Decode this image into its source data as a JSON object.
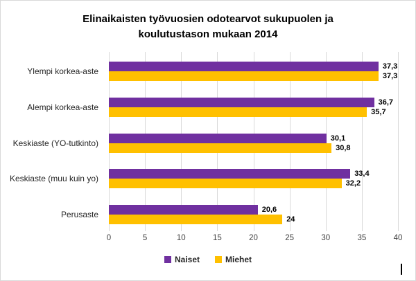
{
  "frame": {
    "background": "#ffffff",
    "border_color": "#d9d9d9"
  },
  "title_lines": [
    "Elinaikaisten työvuosien odotearvot sukupuolen ja",
    "koulutustason mukaan 2014"
  ],
  "chart_data": {
    "type": "bar",
    "orientation": "horizontal",
    "title": "Elinaikaisten työvuosien odotearvot sukupuolen ja koulutustason mukaan 2014",
    "categories": [
      "Ylempi korkea-aste",
      "Alempi korkea-aste",
      "Keskiaste (YO-tutkinto)",
      "Keskiaste (muu kuin yo)",
      "Perusaste"
    ],
    "series": [
      {
        "name": "Naiset",
        "color": "#7030a0",
        "values": [
          37.3,
          36.7,
          30.1,
          33.4,
          20.6
        ],
        "value_labels": [
          "37,3",
          "36,7",
          "30,1",
          "33,4",
          "20,6"
        ]
      },
      {
        "name": "Miehet",
        "color": "#ffc000",
        "values": [
          37.3,
          35.7,
          30.8,
          32.2,
          24
        ],
        "value_labels": [
          "37,3",
          "35,7",
          "30,8",
          "32,2",
          "24"
        ]
      }
    ],
    "xlim": [
      0,
      40
    ],
    "x_ticks": [
      "0",
      "5",
      "10",
      "15",
      "20",
      "25",
      "30",
      "35",
      "40"
    ],
    "gridlines": "vertical",
    "gridline_color": "#d9d9d9",
    "legend_position": "bottom",
    "value_labels_shown": true
  }
}
